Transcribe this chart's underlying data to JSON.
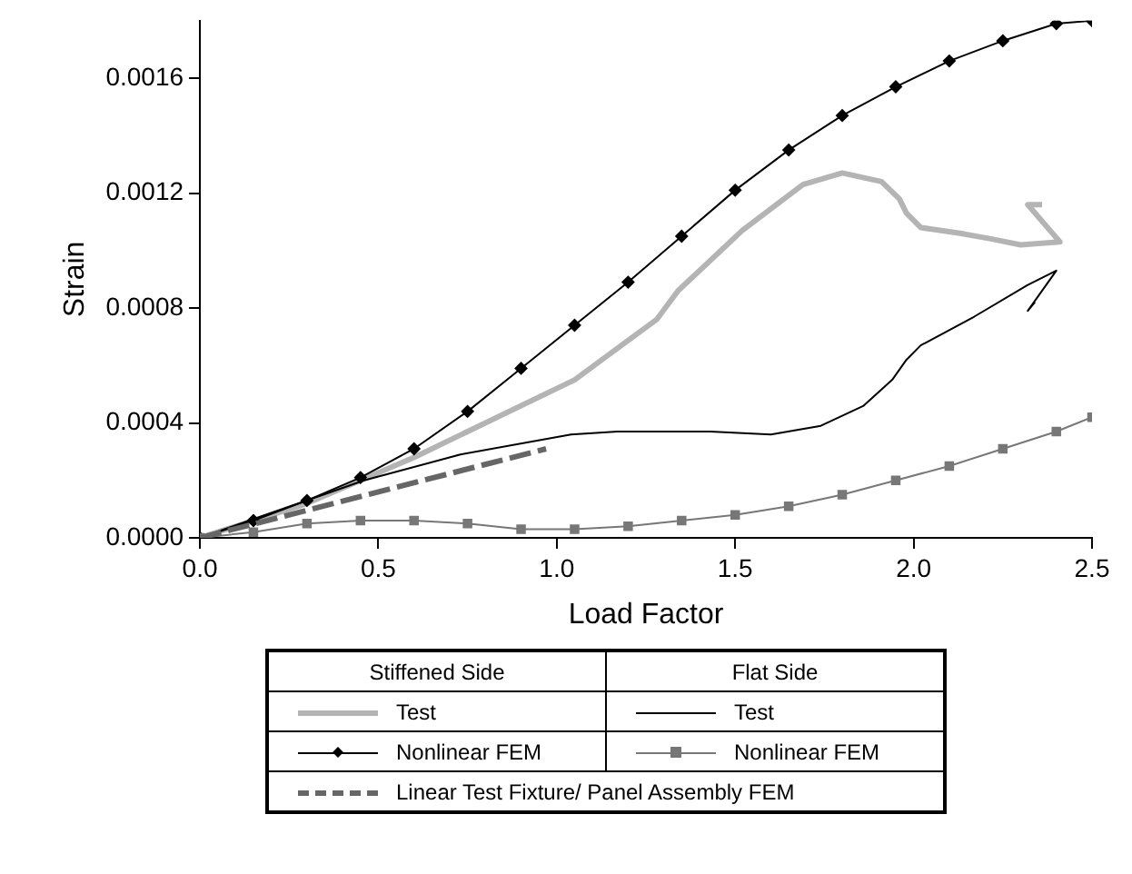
{
  "chart_data": {
    "type": "line",
    "xlabel": "Load Factor",
    "ylabel": "Strain",
    "xlim": [
      0,
      2.5
    ],
    "xticks": [
      {
        "value": 0,
        "label": "0.0"
      },
      {
        "value": 0.5,
        "label": "0.5"
      },
      {
        "value": 1,
        "label": "1.0"
      },
      {
        "value": 1.5,
        "label": "1.5"
      },
      {
        "value": 2,
        "label": "2.0"
      },
      {
        "value": 2.5,
        "label": "2.5"
      }
    ],
    "ylim": [
      0,
      0.0018
    ],
    "yticks": [
      {
        "value": 0,
        "label": "0.0000"
      },
      {
        "value": 0.0004,
        "label": "0.0004"
      },
      {
        "value": 0.0008,
        "label": "0.0008"
      },
      {
        "value": 0.0012,
        "label": "0.0012"
      },
      {
        "value": 0.0016,
        "label": "0.0016"
      }
    ],
    "grid": false,
    "legend": "bottom",
    "annotations": [
      "Stiffened Side",
      "Flat Side"
    ],
    "series": [
      {
        "name": "Test",
        "color": "#b4b4b4",
        "marker": "none",
        "line_style": "solid",
        "x": [
          0,
          0.3,
          0.6,
          0.75,
          1.05,
          1.17,
          1.28,
          1.34,
          1.52,
          1.69,
          1.8,
          1.91,
          1.96,
          1.98,
          2.02,
          2.13,
          2.22,
          2.3,
          2.41,
          2.32,
          2.36
        ],
        "values": [
          0,
          0.00012,
          0.00028,
          0.00037,
          0.00055,
          0.00066,
          0.00076,
          0.00086,
          0.00107,
          0.00123,
          0.00127,
          0.00124,
          0.00118,
          0.00113,
          0.00108,
          0.00106,
          0.00104,
          0.00102,
          0.00103,
          0.00116,
          0.00116
        ]
      },
      {
        "name": "Nonlinear FEM",
        "color": "#000000",
        "marker": "diamond",
        "line_style": "solid",
        "x": [
          0,
          0.15,
          0.3,
          0.45,
          0.6,
          0.75,
          0.9,
          1.05,
          1.2,
          1.35,
          1.5,
          1.65,
          1.8,
          1.95,
          2.1,
          2.25,
          2.4,
          2.5
        ],
        "values": [
          0,
          6e-05,
          0.00013,
          0.00021,
          0.00031,
          0.00044,
          0.00059,
          0.00074,
          0.00089,
          0.00105,
          0.00121,
          0.00135,
          0.00147,
          0.00157,
          0.00166,
          0.00173,
          0.00179,
          0.0018
        ]
      },
      {
        "name": "Test",
        "color": "#000000",
        "marker": "none",
        "line_style": "solid",
        "x": [
          0,
          0.46,
          0.73,
          1.04,
          1.17,
          1.28,
          1.43,
          1.6,
          1.74,
          1.86,
          1.94,
          1.98,
          2.02,
          2.17,
          2.32,
          2.4,
          2.32,
          2.34
        ],
        "values": [
          0,
          0.0002,
          0.00029,
          0.00036,
          0.00037,
          0.00037,
          0.00037,
          0.00036,
          0.00039,
          0.00046,
          0.00055,
          0.00062,
          0.00067,
          0.00077,
          0.00088,
          0.00093,
          0.00079,
          0.00082
        ]
      },
      {
        "name": "Nonlinear FEM",
        "color": "#777777",
        "marker": "square",
        "line_style": "solid",
        "x": [
          0,
          0.15,
          0.3,
          0.45,
          0.6,
          0.75,
          0.9,
          1.05,
          1.2,
          1.35,
          1.5,
          1.65,
          1.8,
          1.95,
          2.1,
          2.25,
          2.4,
          2.5
        ],
        "values": [
          0,
          2e-05,
          5e-05,
          6e-05,
          6e-05,
          5e-05,
          3e-05,
          3e-05,
          4e-05,
          6e-05,
          8e-05,
          0.00011,
          0.00015,
          0.0002,
          0.00025,
          0.00031,
          0.00037,
          0.00042
        ]
      },
      {
        "name": "Linear Test Fixture/ Panel Assembly FEM",
        "color": "#666666",
        "marker": "none",
        "line_style": "dashed",
        "x": [
          0,
          0.97
        ],
        "values": [
          0,
          0.00031
        ]
      }
    ]
  }
}
